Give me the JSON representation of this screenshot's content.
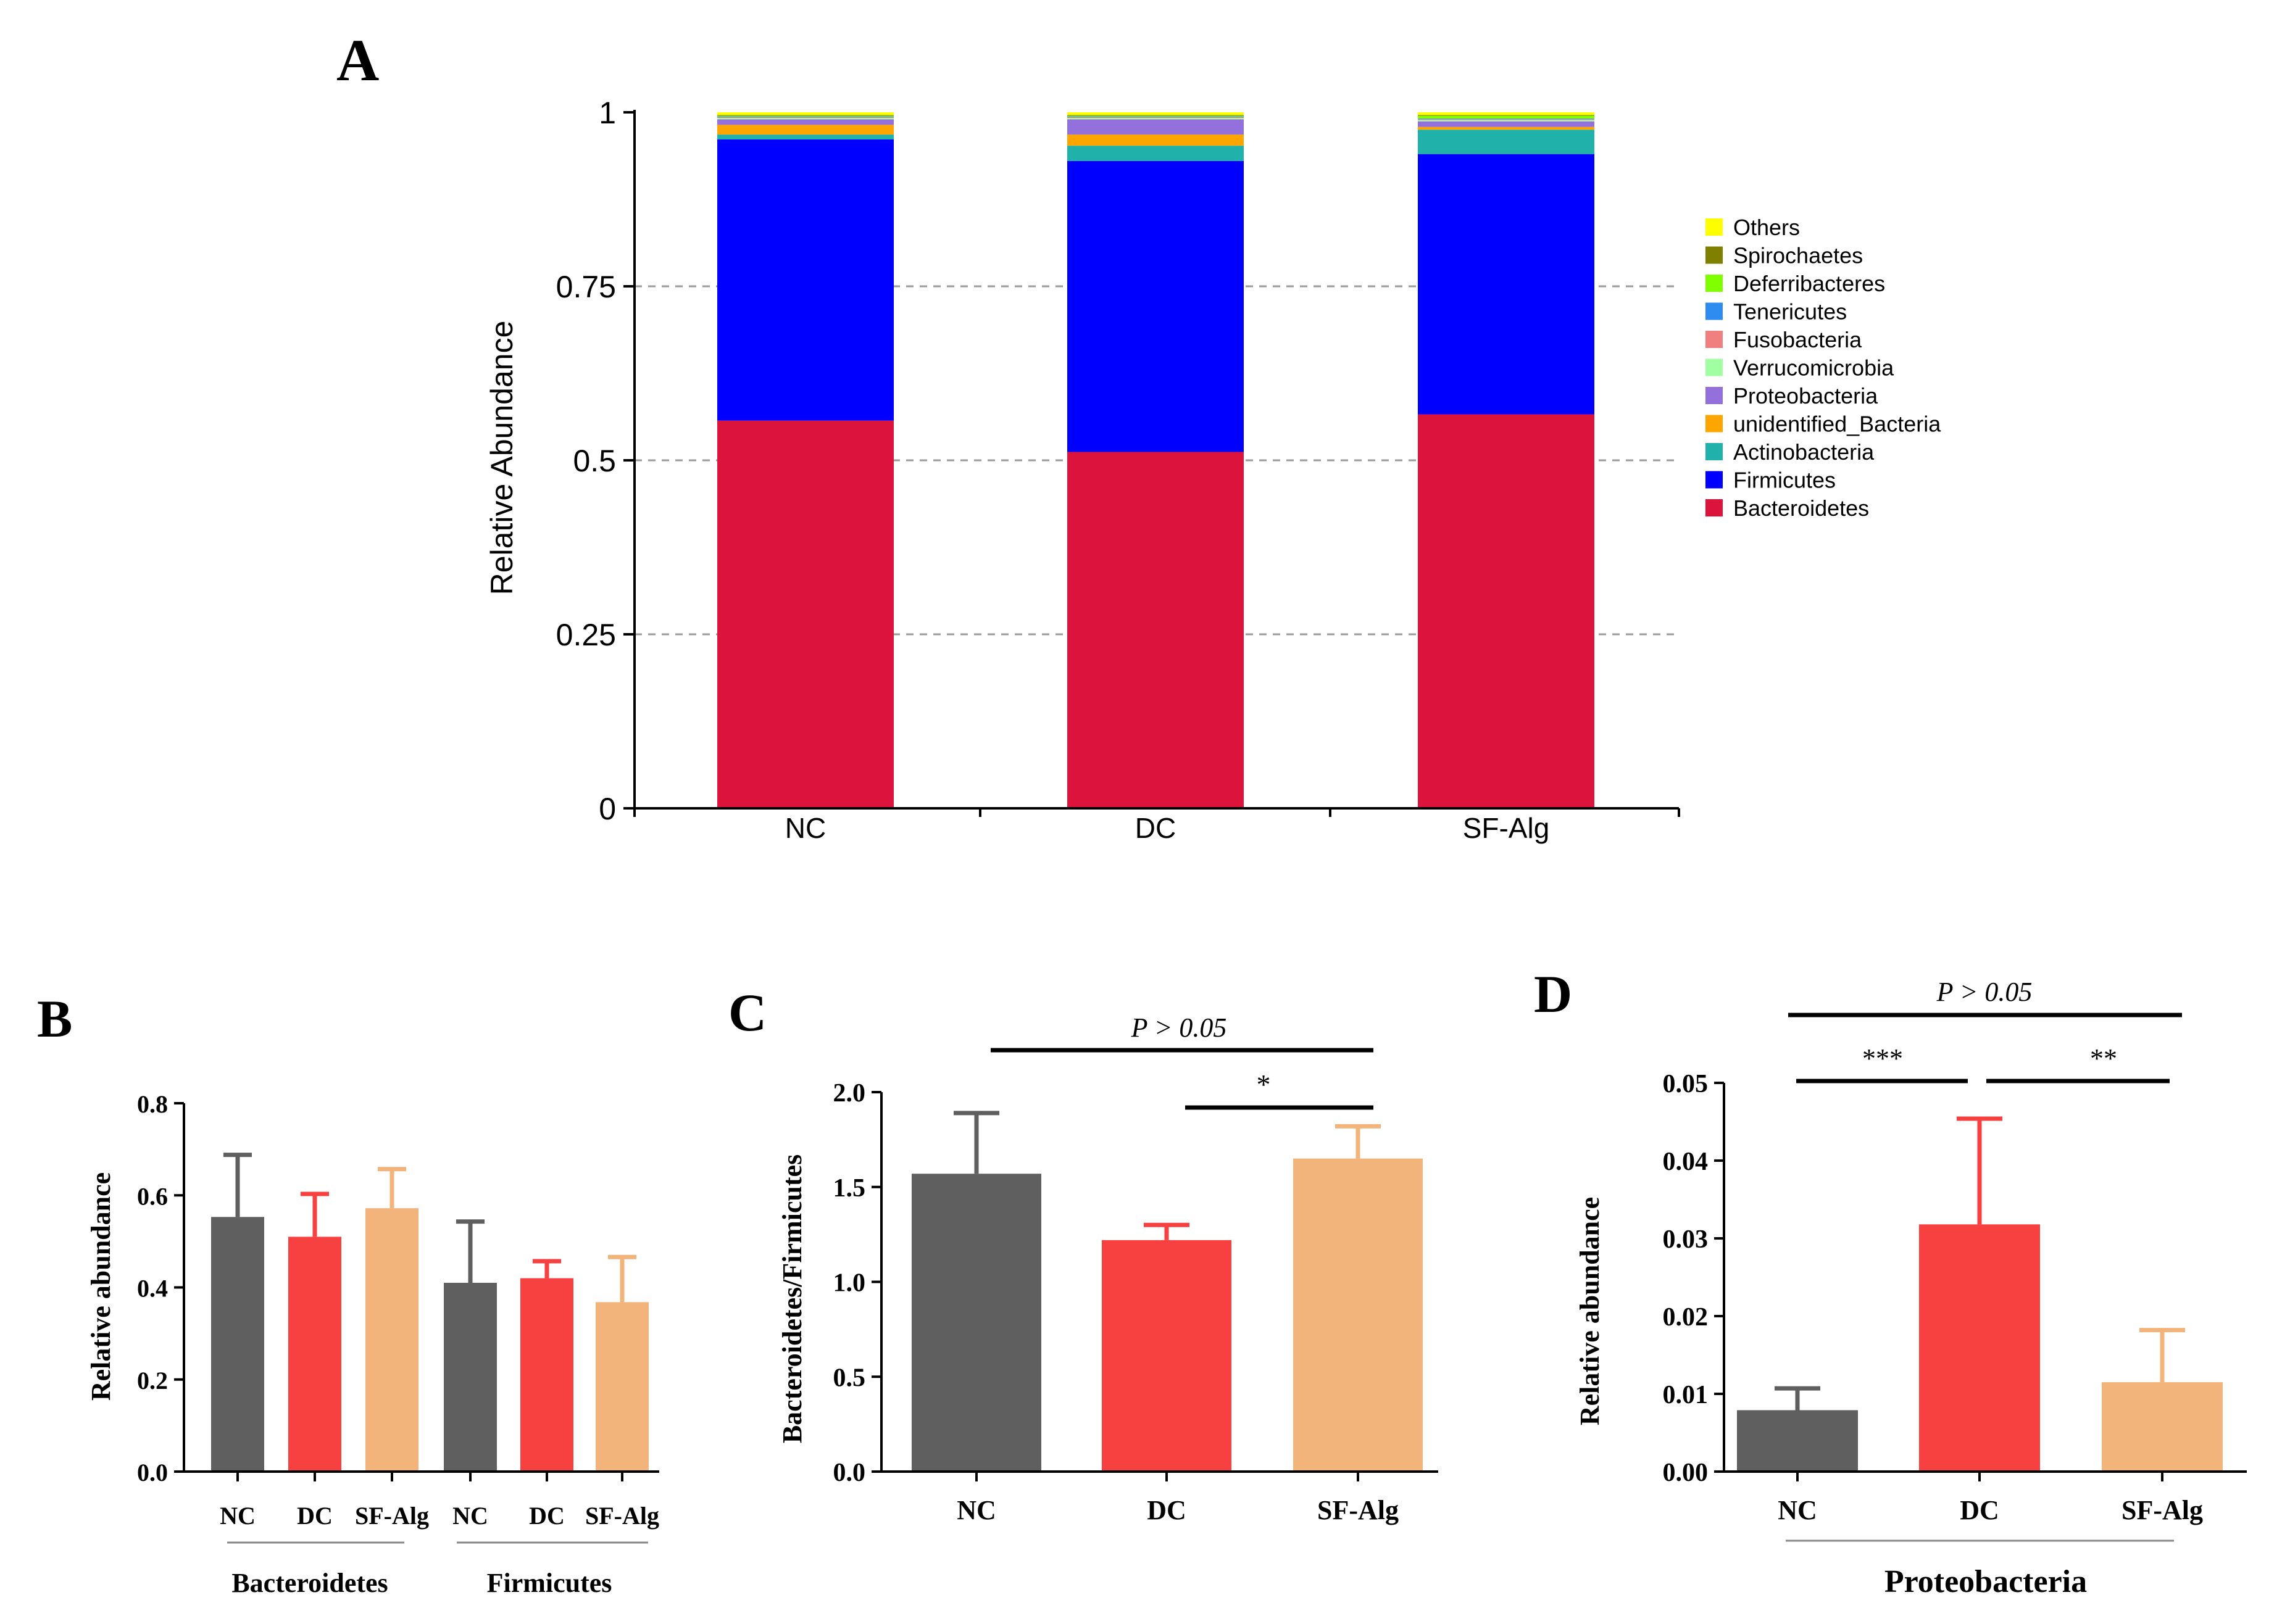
{
  "colors": {
    "Others": "#ffff00",
    "Spirochaetes": "#808000",
    "Deferribacteres": "#80ff00",
    "Tenericutes": "#2e8bf0",
    "Fusobacteria": "#f08080",
    "Verrucomicrobia": "#a0ffa0",
    "Proteobacteria": "#9370db",
    "unidentified_Bacteria": "#ffa500",
    "Actinobacteria": "#20b2aa",
    "Firmicutes": "#0000ff",
    "Bacteroidetes": "#dc143c",
    "nc_bar": "#5f5f5f",
    "dc_bar": "#f74141",
    "sfalg_bar": "#f2b47b"
  },
  "chart_data": [
    {
      "panel": "A",
      "type": "bar",
      "stacked": true,
      "title": "",
      "ylabel": "Relative Abundance",
      "xlabel": "",
      "ylim": [
        0,
        1
      ],
      "yticks": [
        "0",
        "0.25",
        "0.5",
        "0.75",
        "1"
      ],
      "categories": [
        "NC",
        "DC",
        "SF-Alg"
      ],
      "legend_position": "right",
      "series": [
        {
          "name": "Bacteroidetes",
          "values": [
            0.557,
            0.512,
            0.566
          ]
        },
        {
          "name": "Firmicutes",
          "values": [
            0.404,
            0.418,
            0.374
          ]
        },
        {
          "name": "Actinobacteria",
          "values": [
            0.007,
            0.022,
            0.035
          ]
        },
        {
          "name": "unidentified_Bacteria",
          "values": [
            0.014,
            0.016,
            0.004
          ]
        },
        {
          "name": "Proteobacteria",
          "values": [
            0.008,
            0.022,
            0.008
          ]
        },
        {
          "name": "Verrucomicrobia",
          "values": [
            0.002,
            0.002,
            0.002
          ]
        },
        {
          "name": "Fusobacteria",
          "values": [
            0.001,
            0.001,
            0.001
          ]
        },
        {
          "name": "Tenericutes",
          "values": [
            0.001,
            0.001,
            0.001
          ]
        },
        {
          "name": "Deferribacteres",
          "values": [
            0.001,
            0.001,
            0.004
          ]
        },
        {
          "name": "Spirochaetes",
          "values": [
            0.001,
            0.001,
            0.001
          ]
        },
        {
          "name": "Others",
          "values": [
            0.004,
            0.004,
            0.004
          ]
        }
      ],
      "legend": [
        "Others",
        "Spirochaetes",
        "Deferribacteres",
        "Tenericutes",
        "Fusobacteria",
        "Verrucomicrobia",
        "Proteobacteria",
        "unidentified_Bacteria",
        "Actinobacteria",
        "Firmicutes",
        "Bacteroidetes"
      ]
    },
    {
      "panel": "B",
      "type": "bar",
      "title": "",
      "ylabel": "Relative abundance",
      "ylim": [
        0,
        0.8
      ],
      "yticks": [
        "0.0",
        "0.2",
        "0.4",
        "0.6",
        "0.8"
      ],
      "categories": [
        "NC",
        "DC",
        "SF-Alg",
        "NC",
        "DC",
        "SF-Alg"
      ],
      "groups": [
        "Bacteroidetes",
        "Firmicutes"
      ],
      "values": [
        0.553,
        0.51,
        0.572,
        0.41,
        0.42,
        0.368
      ],
      "errors": [
        0.135,
        0.093,
        0.085,
        0.133,
        0.037,
        0.098
      ]
    },
    {
      "panel": "C",
      "type": "bar",
      "title": "",
      "ylabel": "Bacteroidetes/Firmicutes",
      "ylim": [
        0,
        2.0
      ],
      "yticks": [
        "0.0",
        "0.5",
        "1.0",
        "1.5",
        "2.0"
      ],
      "categories": [
        "NC",
        "DC",
        "SF-Alg"
      ],
      "values": [
        1.57,
        1.22,
        1.65
      ],
      "errors": [
        0.32,
        0.08,
        0.17
      ],
      "annotations": [
        {
          "pair": [
            "NC",
            "SF-Alg"
          ],
          "label": "P > 0.05"
        },
        {
          "pair": [
            "DC",
            "SF-Alg"
          ],
          "label": "*"
        }
      ]
    },
    {
      "panel": "D",
      "type": "bar",
      "title": "",
      "ylabel": "Relative abundance",
      "xlabel": "Proteobacteria",
      "ylim": [
        0,
        0.05
      ],
      "yticks": [
        "0.00",
        "0.01",
        "0.02",
        "0.03",
        "0.04",
        "0.05"
      ],
      "categories": [
        "NC",
        "DC",
        "SF-Alg"
      ],
      "values": [
        0.0079,
        0.0318,
        0.0115
      ],
      "errors": [
        0.0028,
        0.0136,
        0.0067
      ],
      "annotations": [
        {
          "pair": [
            "NC",
            "SF-Alg"
          ],
          "label": "P > 0.05"
        },
        {
          "pair": [
            "NC",
            "DC"
          ],
          "label": "***"
        },
        {
          "pair": [
            "DC",
            "SF-Alg"
          ],
          "label": "**"
        }
      ]
    }
  ],
  "panel_labels": [
    "A",
    "B",
    "C",
    "D"
  ]
}
